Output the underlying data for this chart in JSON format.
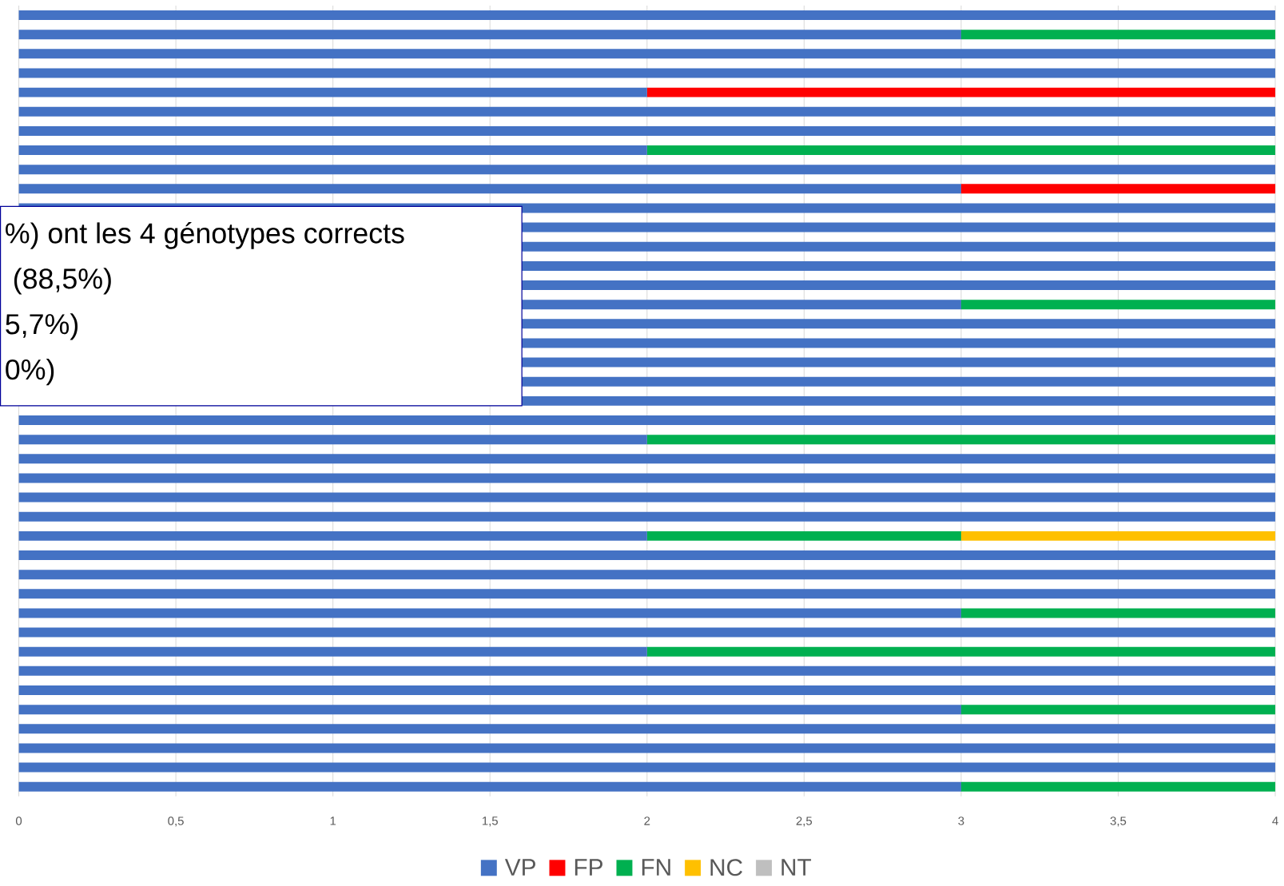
{
  "chart_data": {
    "type": "bar",
    "orientation": "horizontal",
    "stacked": true,
    "categories": [
      null,
      null,
      null,
      null,
      null,
      null,
      null,
      null,
      null,
      null,
      null,
      null,
      null,
      null,
      null,
      null,
      null,
      null,
      null,
      null,
      null,
      null,
      null,
      null,
      null,
      null,
      null,
      null,
      null,
      null,
      null,
      null,
      null,
      null,
      null,
      null,
      null,
      null,
      null,
      null,
      null
    ],
    "series": [
      {
        "name": "VP",
        "color": "#4472c4",
        "values": [
          4,
          3,
          4,
          4,
          2,
          4,
          4,
          2,
          4,
          3,
          4,
          4,
          4,
          4,
          4,
          3,
          4,
          4,
          4,
          4,
          4,
          4,
          2,
          4,
          4,
          4,
          4,
          2,
          4,
          4,
          4,
          3,
          4,
          2,
          4,
          4,
          3,
          4,
          4,
          4,
          3
        ]
      },
      {
        "name": "FP",
        "color": "#ff0000",
        "values": [
          0,
          0,
          0,
          0,
          2,
          0,
          0,
          0,
          0,
          1,
          0,
          0,
          0,
          0,
          0,
          0,
          0,
          0,
          0,
          0,
          0,
          0,
          0,
          0,
          0,
          0,
          0,
          0,
          0,
          0,
          0,
          0,
          0,
          0,
          0,
          0,
          0,
          0,
          0,
          0,
          0
        ]
      },
      {
        "name": "FN",
        "color": "#00b050",
        "values": [
          0,
          1,
          0,
          0,
          0,
          0,
          0,
          2,
          0,
          0,
          0,
          0,
          0,
          0,
          0,
          1,
          0,
          0,
          0,
          0,
          0,
          0,
          2,
          0,
          0,
          0,
          0,
          1,
          0,
          0,
          0,
          1,
          0,
          2,
          0,
          0,
          1,
          0,
          0,
          0,
          1
        ]
      },
      {
        "name": "NC",
        "color": "#ffc000",
        "values": [
          0,
          0,
          0,
          0,
          0,
          0,
          0,
          0,
          0,
          0,
          0,
          0,
          0,
          0,
          0,
          0,
          0,
          0,
          0,
          0,
          0,
          0,
          0,
          0,
          0,
          0,
          0,
          1,
          0,
          0,
          0,
          0,
          0,
          0,
          0,
          0,
          0,
          0,
          0,
          0,
          0
        ]
      },
      {
        "name": "NT",
        "color": "#bfbfbf",
        "values": [
          0,
          0,
          0,
          0,
          0,
          0,
          0,
          0,
          0,
          0,
          0,
          0,
          0,
          0,
          0,
          0,
          0,
          0,
          0,
          0,
          0,
          0,
          0,
          0,
          0,
          0,
          0,
          0,
          0,
          0,
          0,
          0,
          0,
          0,
          0,
          0,
          0,
          0,
          0,
          0,
          0
        ]
      }
    ],
    "xlim": [
      0,
      4
    ],
    "xticks": [
      0,
      {
        "value": 0.5,
        "label": "0,5"
      },
      1,
      {
        "value": 1.5,
        "label": "1,5"
      },
      2,
      {
        "value": 2.5,
        "label": "2,5"
      },
      3,
      {
        "value": 3.5,
        "label": "3,5"
      },
      4
    ],
    "grid": "x",
    "legend": "bottom",
    "annotations": [
      "%) ont les 4 génotypes corrects",
      " (88,5%)",
      "5,7%)",
      "0%)"
    ]
  }
}
